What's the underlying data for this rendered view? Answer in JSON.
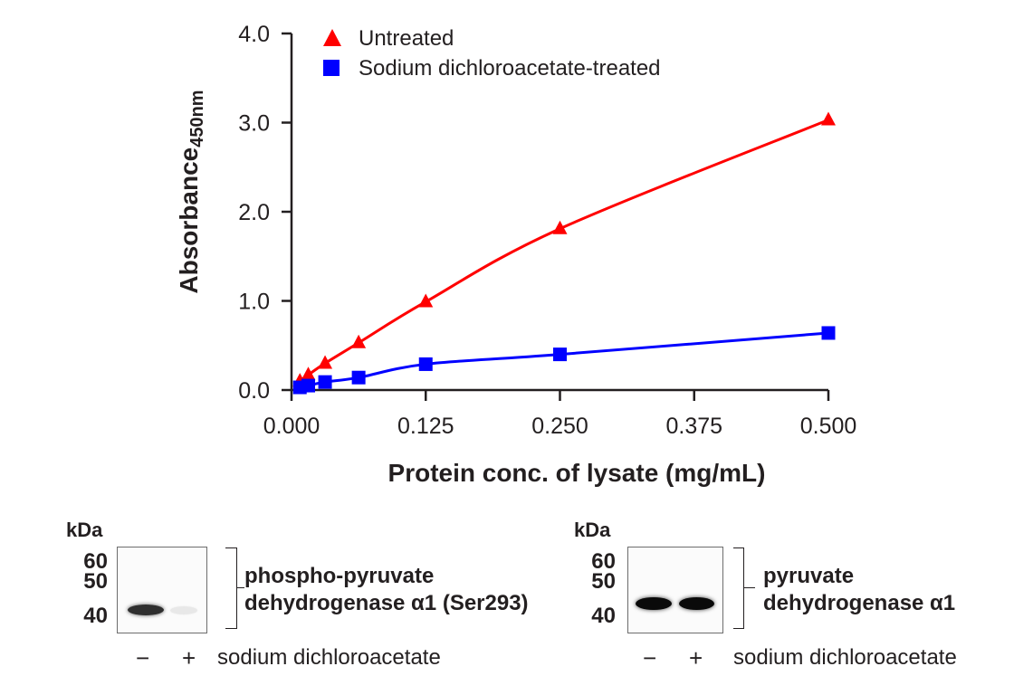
{
  "chart_data": {
    "type": "line",
    "title": "",
    "xlabel": "Protein conc. of lysate (mg/mL)",
    "ylabel_main": "Absorbance",
    "ylabel_sub": "450nm",
    "xlim": [
      0,
      0.5
    ],
    "ylim": [
      0,
      4.0
    ],
    "x_ticks": [
      0,
      0.125,
      0.25,
      0.375,
      0.5
    ],
    "x_tick_labels": [
      "0.000",
      "0.125",
      "0.250",
      "0.375",
      "0.500"
    ],
    "y_ticks": [
      0,
      1,
      2,
      3,
      4
    ],
    "y_tick_labels": [
      "0.0",
      "1.0",
      "2.0",
      "3.0",
      "4.0"
    ],
    "grid": false,
    "legend_position": "top-left",
    "series": [
      {
        "name": "Untreated",
        "marker": "triangle",
        "color": "#ff0000",
        "x": [
          0.0078,
          0.0156,
          0.03125,
          0.0625,
          0.125,
          0.25,
          0.5
        ],
        "values": [
          0.1,
          0.17,
          0.3,
          0.53,
          0.99,
          1.81,
          3.03
        ]
      },
      {
        "name": "Sodium dichloroacetate-treated",
        "marker": "square",
        "color": "#0000ff",
        "x": [
          0.0078,
          0.0156,
          0.03125,
          0.0625,
          0.125,
          0.25,
          0.5
        ],
        "values": [
          0.03,
          0.05,
          0.09,
          0.14,
          0.29,
          0.4,
          0.64
        ]
      }
    ]
  },
  "blots": [
    {
      "unit_label": "kDa",
      "mw_markers": [
        "60",
        "50",
        "40"
      ],
      "target_line1": "phospho-pyruvate",
      "target_line2": "dehydrogenase α1 (Ser293)",
      "lanes": [
        "−",
        "+"
      ],
      "lane_band_intensity": [
        0.85,
        0.08
      ],
      "treatment_label": "sodium dichloroacetate"
    },
    {
      "unit_label": "kDa",
      "mw_markers": [
        "60",
        "50",
        "40"
      ],
      "target_line1": "pyruvate",
      "target_line2": "dehydrogenase α1",
      "lanes": [
        "−",
        "+"
      ],
      "lane_band_intensity": [
        1.0,
        1.0
      ],
      "treatment_label": "sodium dichloroacetate"
    }
  ]
}
